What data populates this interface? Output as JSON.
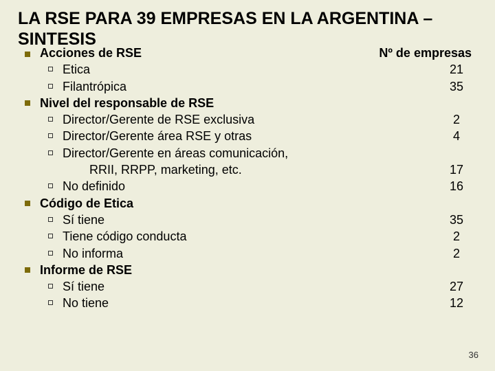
{
  "title_line1": "LA RSE PARA 39 EMPRESAS EN LA ARGENTINA –",
  "title_line2": "SINTESIS",
  "header_left": "Acciones de RSE",
  "header_right": "Nº de empresas",
  "sections": {
    "s0_i0_label": "Etica",
    "s0_i0_val": "21",
    "s0_i1_label": "Filantrópica",
    "s0_i1_val": "35",
    "s1_title": "Nivel del responsable de RSE",
    "s1_i0_label": "Director/Gerente de RSE exclusiva",
    "s1_i0_val": "2",
    "s1_i1_label": "Director/Gerente área RSE y otras",
    "s1_i1_val": "4",
    "s1_i2_label_a": "Director/Gerente en áreas comunicación,",
    "s1_i2_label_b": "RRII, RRPP, marketing, etc.",
    "s1_i2_val": "17",
    "s1_i3_label": "No definido",
    "s1_i3_val": "16",
    "s2_title": "Código de Etica",
    "s2_i0_label": "Sí tiene",
    "s2_i0_val": "35",
    "s2_i1_label": "Tiene código conducta",
    "s2_i1_val": "2",
    "s2_i2_label": "No informa",
    "s2_i2_val": "2",
    "s3_title": "Informe de RSE",
    "s3_i0_label": "Sí tiene",
    "s3_i0_val": "27",
    "s3_i1_label": "No tiene",
    "s3_i1_val": "12"
  },
  "page_number": "36",
  "colors": {
    "background": "#eeeedd",
    "accent": "#7d6b09",
    "text": "#000000"
  }
}
